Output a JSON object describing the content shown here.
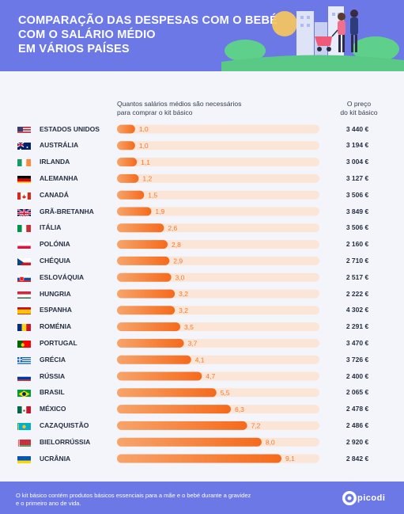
{
  "header": {
    "title_lines": [
      "COMPARAÇÃO DAS DESPESAS COM O BEBÉ",
      "COM O SALÁRIO MÉDIO",
      "EM VÁRIOS PAÍSES"
    ]
  },
  "columns": {
    "left_line1": "Quantos salários médios são necessários",
    "left_line2": "para comprar o kit básico",
    "right_line1": "O preço",
    "right_line2": "do kit básico"
  },
  "colors": {
    "header_bg": "#6b78e6",
    "bar_start": "#f7a46a",
    "bar_end": "#f56a1c",
    "track": "#fbe5d6",
    "value_text": "#f5782d"
  },
  "chart_data": {
    "type": "bar",
    "orientation": "horizontal",
    "categories": [
      "ESTADOS UNIDOS",
      "AUSTRÁLIA",
      "IRLANDA",
      "ALEMANHA",
      "CANADÁ",
      "GRÃ-BRETANHA",
      "ITÁLIA",
      "POLÓNIA",
      "CHÉQUIA",
      "ESLOVÁQUIA",
      "HUNGRIA",
      "ESPANHA",
      "ROMÉNIA",
      "PORTUGAL",
      "GRÉCIA",
      "RÚSSIA",
      "BRASIL",
      "MÉXICO",
      "CAZAQUISTÃO",
      "BIELORRÚSSIA",
      "UCRÂNIA"
    ],
    "values": [
      1.0,
      1.0,
      1.1,
      1.2,
      1.5,
      1.9,
      2.6,
      2.8,
      2.9,
      3.0,
      3.2,
      3.2,
      3.5,
      3.7,
      4.1,
      4.7,
      5.5,
      6.3,
      7.2,
      8.0,
      9.1
    ],
    "value_labels": [
      "1,0",
      "1,0",
      "1,1",
      "1,2",
      "1,5",
      "1,9",
      "2,6",
      "2,8",
      "2,9",
      "3,0",
      "3,2",
      "3,2",
      "3,5",
      "3,7",
      "4,1",
      "4,7",
      "5,5",
      "6,3",
      "7,2",
      "8,0",
      "9,1"
    ],
    "prices": [
      "3 440 €",
      "3 194 €",
      "3 004 €",
      "3 127 €",
      "3 506 €",
      "3 849 €",
      "3 506 €",
      "2 160 €",
      "2 710 €",
      "2 517 €",
      "2 222 €",
      "4 302 €",
      "2 291 €",
      "3 470 €",
      "3 726 €",
      "2 400 €",
      "2 065 €",
      "2 478 €",
      "2 486 €",
      "2 920 €",
      "2 842 €"
    ],
    "flags": [
      "us-flag-icon",
      "au-flag-icon",
      "ie-flag-icon",
      "de-flag-icon",
      "ca-flag-icon",
      "gb-flag-icon",
      "it-flag-icon",
      "pl-flag-icon",
      "cz-flag-icon",
      "sk-flag-icon",
      "hu-flag-icon",
      "es-flag-icon",
      "ro-flag-icon",
      "pt-flag-icon",
      "gr-flag-icon",
      "ru-flag-icon",
      "br-flag-icon",
      "mx-flag-icon",
      "kz-flag-icon",
      "by-flag-icon",
      "ua-flag-icon"
    ],
    "xlim": [
      0,
      9.1
    ],
    "grid": false
  },
  "footer": {
    "note_line1": "O kit básico contém produtos básicos essenciais para a mãe e o bebé durante a gravidez",
    "note_line2": "e o primeiro ano de vida.",
    "logo_text": "picodi"
  }
}
